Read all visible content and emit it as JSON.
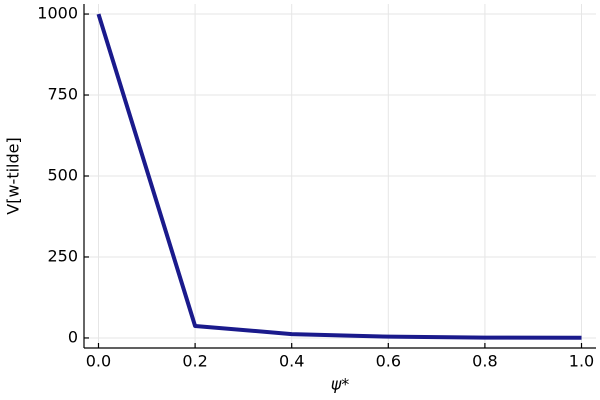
{
  "chart_data": {
    "type": "line",
    "xlabel": "ψ*",
    "ylabel": "V[w-tilde]",
    "series": [
      {
        "name": "y1",
        "color": "#1a1a8c",
        "x": [
          0,
          0.2,
          0.4,
          0.6,
          0.8,
          1.0
        ],
        "values": [
          1000,
          37,
          12,
          4,
          1,
          0.5
        ]
      }
    ],
    "xlim": [
      -0.03,
      1.03
    ],
    "xticks": [
      {
        "value": 0,
        "label": "0.0"
      },
      {
        "value": 0.2,
        "label": "0.2"
      },
      {
        "value": 0.4,
        "label": "0.4"
      },
      {
        "value": 0.6,
        "label": "0.6"
      },
      {
        "value": 0.8,
        "label": "0.8"
      },
      {
        "value": 1.0,
        "label": "1.0"
      }
    ],
    "ylim": [
      -31,
      1031
    ],
    "yticks": [
      0,
      250,
      500,
      750,
      1000
    ],
    "grid": true
  }
}
